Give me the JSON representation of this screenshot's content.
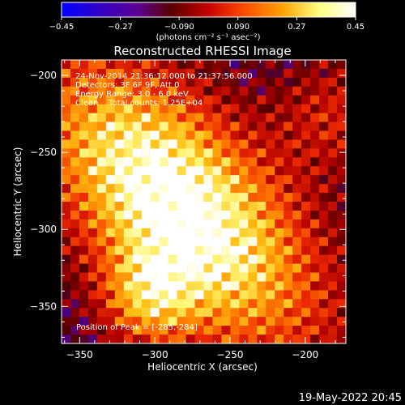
{
  "chart_data": {
    "type": "heatmap",
    "title": "Reconstructed RHESSI Image",
    "xlabel": "Heliocentric X (arcsec)",
    "ylabel": "Heliocentric Y (arcsec)",
    "xlim": [
      -362,
      -173
    ],
    "ylim": [
      -374,
      -190
    ],
    "x_ticks": [
      -350,
      -300,
      -250,
      -200
    ],
    "x_tick_labels": [
      "−350",
      "−300",
      "−250",
      "−200"
    ],
    "y_ticks": [
      -200,
      -250,
      -300,
      -350
    ],
    "y_tick_labels": [
      "−200",
      "−250",
      "−300",
      "−350"
    ],
    "colorbar": {
      "colormap": "red-temperature",
      "range": [
        -0.45,
        0.45
      ],
      "ticks": [
        -0.45,
        -0.27,
        -0.09,
        0.09,
        0.27,
        0.45
      ],
      "tick_labels": [
        "−0.45",
        "−0.27",
        "−0.090",
        "0.090",
        "0.27",
        "0.45"
      ],
      "label": "(photons cm⁻² s⁻¹ asec⁻²)",
      "stops": [
        "#0000ff",
        "#3000c8",
        "#5a0096",
        "#5a0000",
        "#c80000",
        "#ff5000",
        "#ffa000",
        "#ffff80",
        "#ffffff"
      ]
    },
    "info_lines": [
      "24-Nov-2014 21:36:12.000 to 21:37:56.000",
      "Detectors: 3F 6F 9F, Att 0",
      "Energy Range: 3.0 - 6.0 keV",
      "Clean    Total counts: 1.25E+04"
    ],
    "peak_label": "Position of Peak = [-285,-284]",
    "peak_position": [
      -285,
      -284
    ],
    "grid": false
  },
  "footer": {
    "date": "19-May-2022 20:45"
  }
}
